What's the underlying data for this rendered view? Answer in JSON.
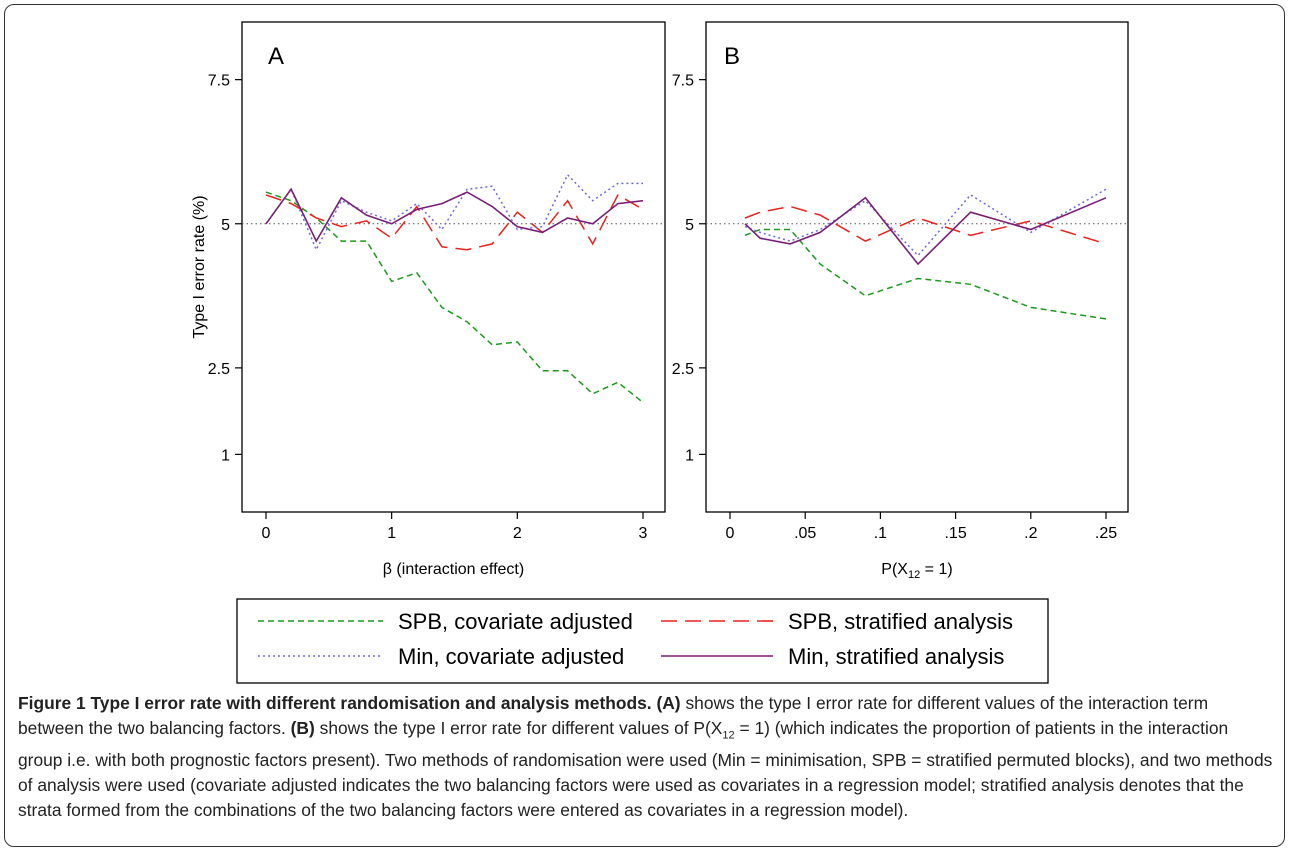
{
  "chart_data": [
    {
      "panel": "A",
      "type": "line",
      "ylabel": "Type I error rate (%)",
      "xlabel": "β (interaction effect)",
      "xlim": [
        0,
        3
      ],
      "ylim": [
        0,
        8.5
      ],
      "xticks": [
        0,
        1,
        2,
        3
      ],
      "xtick_labels": [
        "0",
        "1",
        "2",
        "3"
      ],
      "yticks": [
        1,
        2.5,
        5,
        7.5
      ],
      "ytick_labels": [
        "1",
        "2.5",
        "5",
        "7.5"
      ],
      "reference_line": 5,
      "x": [
        0,
        0.2,
        0.4,
        0.6,
        0.8,
        1.0,
        1.2,
        1.4,
        1.6,
        1.8,
        2.0,
        2.2,
        2.4,
        2.6,
        2.8,
        3.0
      ],
      "series": [
        {
          "name": "SPB, covariate adjusted",
          "color": "#1a9a1a",
          "dash": "dotted-dash",
          "values": [
            5.55,
            5.4,
            5.1,
            4.7,
            4.7,
            4.0,
            4.15,
            3.55,
            3.3,
            2.9,
            2.95,
            2.45,
            2.45,
            2.05,
            2.25,
            1.9
          ]
        },
        {
          "name": "SPB, stratified analysis",
          "color": "#e8231f",
          "dash": "dash",
          "values": [
            5.5,
            5.35,
            5.1,
            4.95,
            5.05,
            4.75,
            5.3,
            4.6,
            4.55,
            4.65,
            5.2,
            4.85,
            5.4,
            4.65,
            5.5,
            5.25
          ]
        },
        {
          "name": "Min, covariate adjusted",
          "color": "#6a6ae0",
          "dash": "dot",
          "values": [
            5.0,
            5.6,
            4.55,
            5.4,
            5.2,
            5.05,
            5.35,
            4.9,
            5.6,
            5.65,
            4.9,
            4.95,
            5.85,
            5.4,
            5.7,
            5.7
          ]
        },
        {
          "name": "Min, stratified analysis",
          "color": "#7a1f78",
          "dash": "solid",
          "values": [
            5.0,
            5.6,
            4.7,
            5.45,
            5.15,
            5.0,
            5.25,
            5.35,
            5.55,
            5.3,
            4.95,
            4.85,
            5.1,
            5.0,
            5.35,
            5.4
          ]
        }
      ]
    },
    {
      "panel": "B",
      "type": "line",
      "ylabel": "",
      "xlabel": "P(X",
      "xlabel_sub": "12",
      "xlabel_suffix": " = 1)",
      "xlim": [
        0,
        0.25
      ],
      "ylim": [
        0,
        8.5
      ],
      "xticks": [
        0,
        0.05,
        0.1,
        0.15,
        0.2,
        0.25
      ],
      "xtick_labels": [
        "0",
        ".05",
        ".1",
        ".15",
        ".2",
        ".25"
      ],
      "yticks": [
        1,
        2.5,
        5,
        7.5
      ],
      "ytick_labels": [
        "1",
        "2.5",
        "5",
        "7.5"
      ],
      "reference_line": 5,
      "x": [
        0.01,
        0.02,
        0.04,
        0.06,
        0.09,
        0.125,
        0.16,
        0.2,
        0.25
      ],
      "series": [
        {
          "name": "SPB, covariate adjusted",
          "color": "#1a9a1a",
          "dash": "dotted-dash",
          "values": [
            4.8,
            4.9,
            4.9,
            4.3,
            3.75,
            4.05,
            3.95,
            3.55,
            3.35
          ]
        },
        {
          "name": "SPB, stratified analysis",
          "color": "#e8231f",
          "dash": "dash",
          "values": [
            5.1,
            5.2,
            5.3,
            5.15,
            4.7,
            5.1,
            4.8,
            5.05,
            4.65
          ]
        },
        {
          "name": "Min, covariate adjusted",
          "color": "#6a6ae0",
          "dash": "dot",
          "values": [
            4.95,
            4.85,
            4.7,
            4.9,
            5.4,
            4.45,
            5.5,
            4.85,
            5.6
          ]
        },
        {
          "name": "Min, stratified analysis",
          "color": "#7a1f78",
          "dash": "solid",
          "values": [
            5.0,
            4.75,
            4.65,
            4.85,
            5.45,
            4.3,
            5.2,
            4.9,
            5.45
          ]
        }
      ]
    }
  ],
  "legend": {
    "items": [
      {
        "label": "SPB, covariate adjusted",
        "color": "#1a9a1a",
        "dash": "dotted-dash"
      },
      {
        "label": "SPB, stratified analysis",
        "color": "#e8231f",
        "dash": "dash"
      },
      {
        "label": "Min, covariate adjusted",
        "color": "#6a6ae0",
        "dash": "dot"
      },
      {
        "label": "Min, stratified analysis",
        "color": "#7a1f78",
        "dash": "solid"
      }
    ]
  },
  "caption": {
    "title": "Figure 1 Type I error rate with different randomisation and analysis methods.",
    "a_label": "(A)",
    "a_text": "shows the type I error rate for different values of the interaction term between the two balancing factors.",
    "b_label": "(B)",
    "b_text_1": "shows the type I error rate for different values of P(X",
    "b_sub": "12",
    "b_text_2": " = 1) (which indicates the proportion of patients in the interaction group i.e. with both prognostic factors present). Two methods of randomisation were used (Min = minimisation, SPB = stratified permuted blocks), and two methods of analysis were used (covariate adjusted indicates the two balancing factors were used as covariates in a regression model; stratified analysis denotes that the strata formed from the combinations of the two balancing factors were entered as covariates in a regression model)."
  }
}
